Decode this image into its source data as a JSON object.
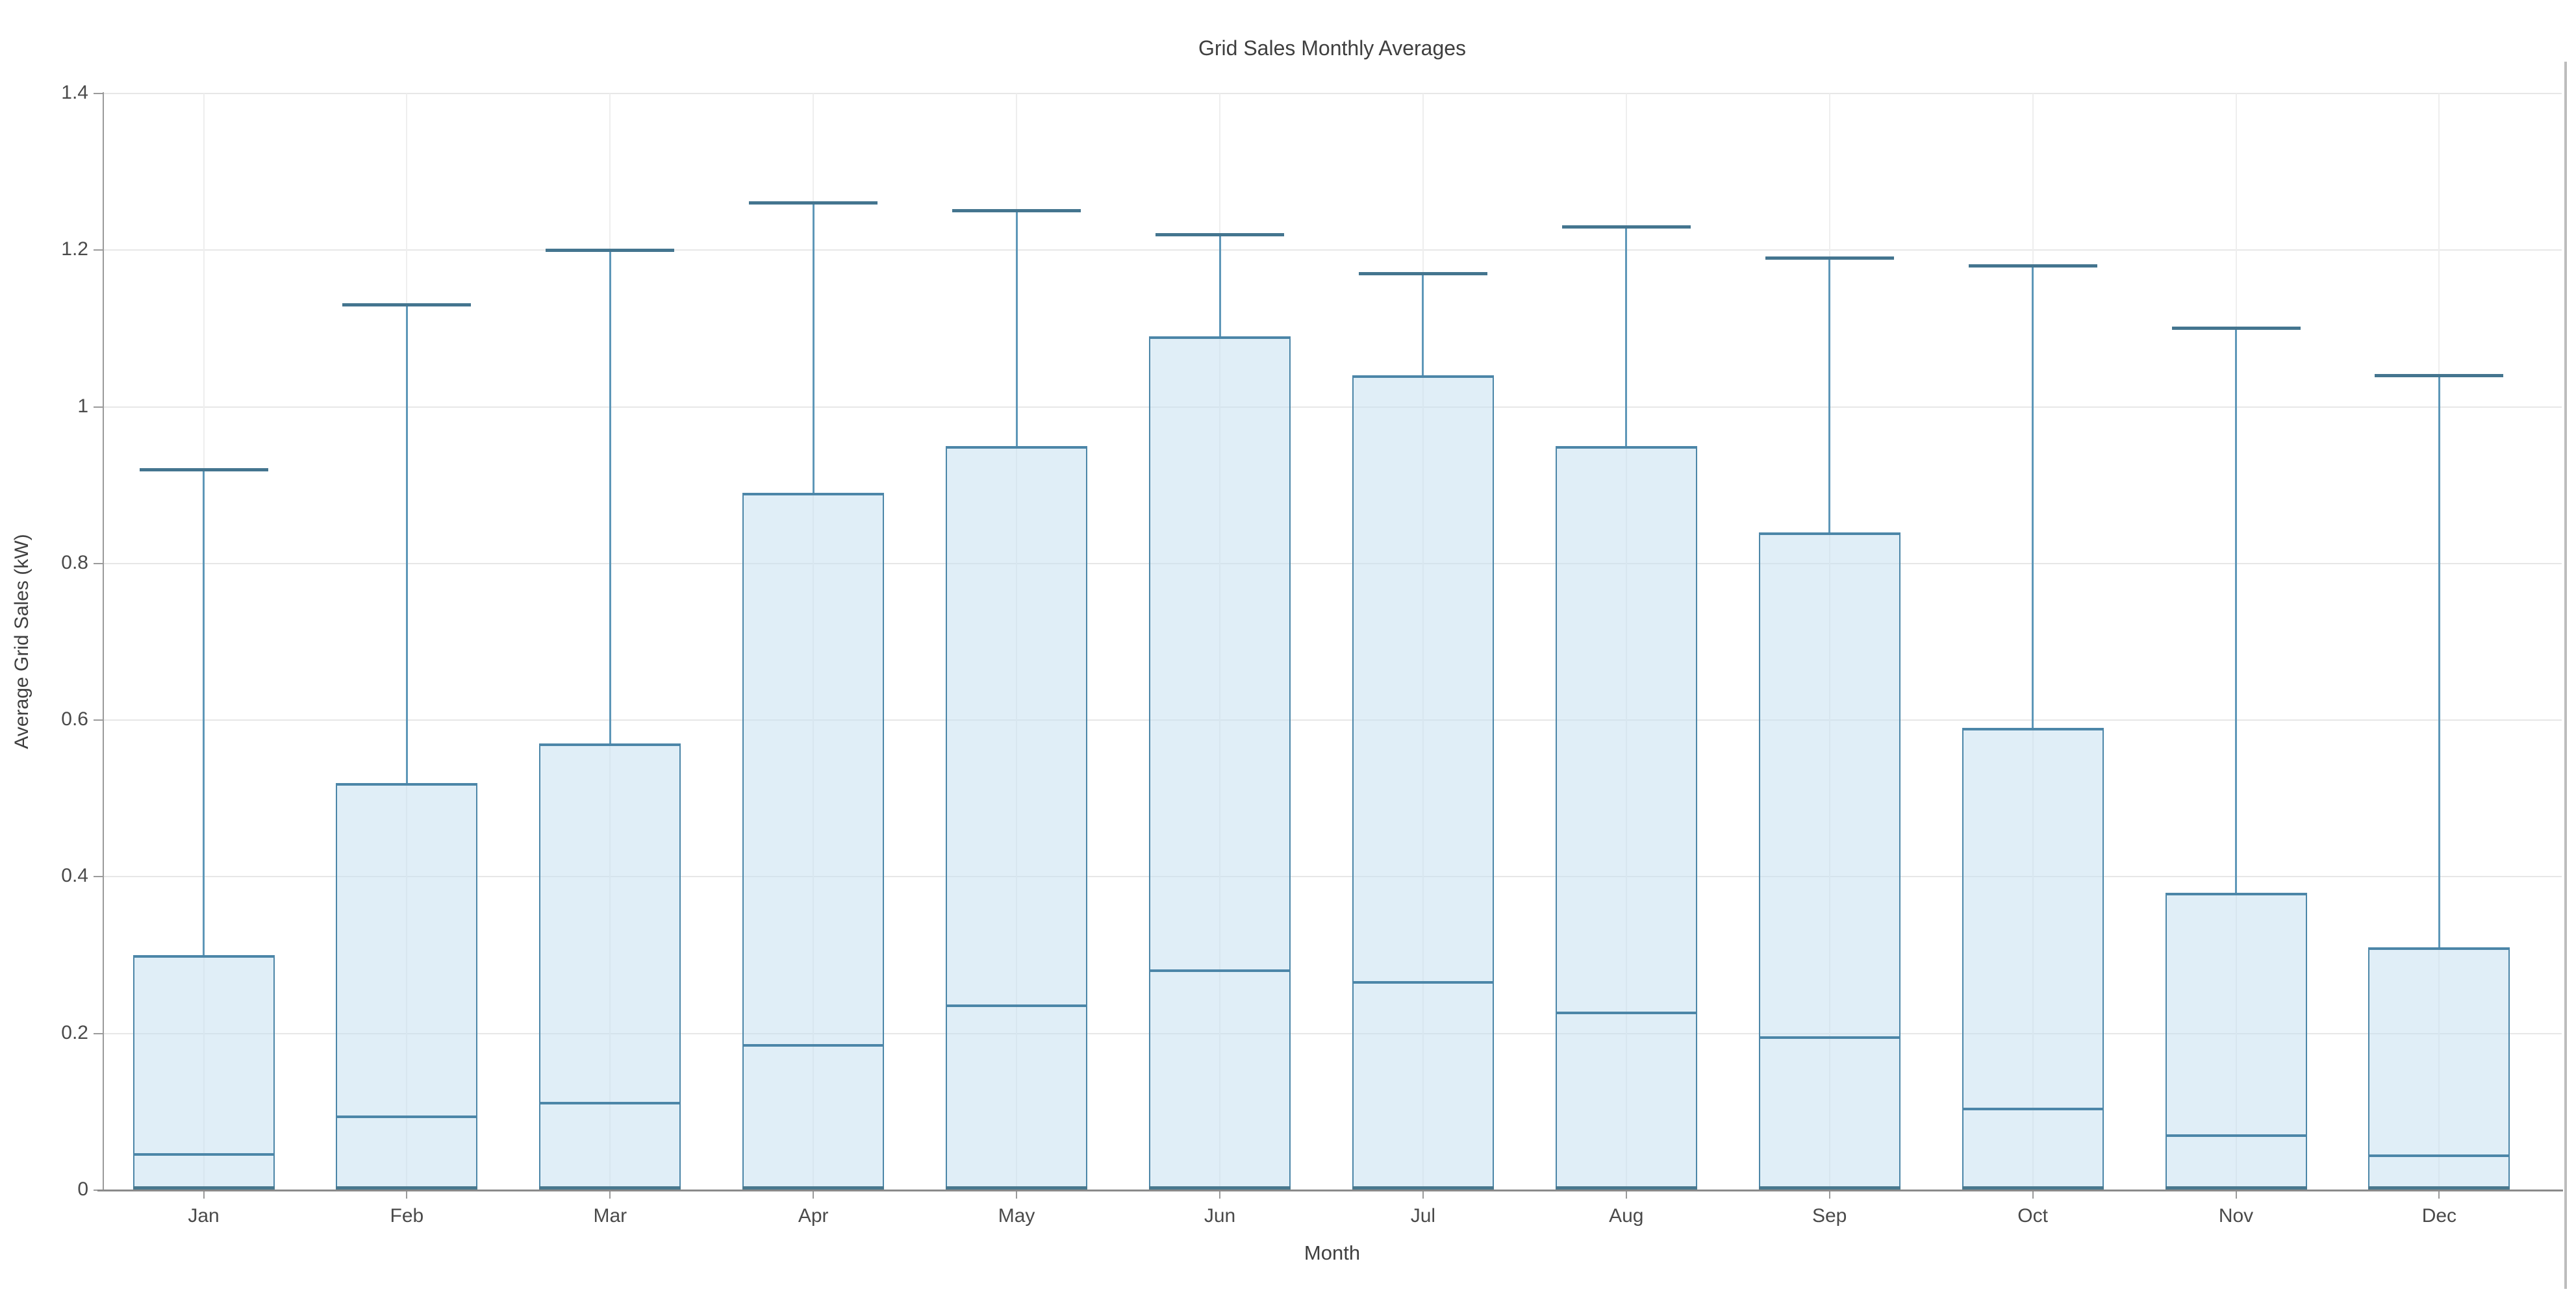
{
  "chart": {
    "title": "Grid Sales Monthly Averages",
    "xlabel": "Month",
    "ylabel": "Average Grid Sales (kW)"
  },
  "chart_data": {
    "type": "bar",
    "subtype": "column-with-median-and-upper-whisker",
    "title": "Grid Sales Monthly Averages",
    "xlabel": "Month",
    "ylabel": "Average Grid Sales (kW)",
    "categories": [
      "Jan",
      "Feb",
      "Mar",
      "Apr",
      "May",
      "Jun",
      "Jul",
      "Aug",
      "Sep",
      "Oct",
      "Nov",
      "Dec"
    ],
    "series": [
      {
        "name": "bar_top",
        "values": [
          0.3,
          0.52,
          0.57,
          0.89,
          0.95,
          1.09,
          1.04,
          0.95,
          0.84,
          0.59,
          0.38,
          0.31
        ]
      },
      {
        "name": "median",
        "values": [
          0.046,
          0.094,
          0.111,
          0.185,
          0.235,
          0.28,
          0.265,
          0.226,
          0.195,
          0.104,
          0.07,
          0.044
        ]
      },
      {
        "name": "whisker_high",
        "values": [
          0.92,
          1.13,
          1.2,
          1.26,
          1.25,
          1.22,
          1.17,
          1.23,
          1.19,
          1.18,
          1.1,
          1.04
        ]
      }
    ],
    "bar_base": 0,
    "ylim": [
      0,
      1.4
    ],
    "yticks": [
      {
        "value": 0,
        "label": "0"
      },
      {
        "value": 0.2,
        "label": "0.2"
      },
      {
        "value": 0.4,
        "label": "0.4"
      },
      {
        "value": 0.6,
        "label": "0.6"
      },
      {
        "value": 0.8,
        "label": "0.8"
      },
      {
        "value": 1,
        "label": "1"
      },
      {
        "value": 1.2,
        "label": "1.2"
      },
      {
        "value": 1.4,
        "label": "1.4"
      }
    ],
    "grid": true,
    "legend_position": "none",
    "colors": {
      "bar_fill": "rgba(199,224,241,0.55)",
      "bar_border": "#4c86a8",
      "median_line": "#4c86a8",
      "whisker_line": "#5e97b8",
      "cap_line": "#44758f",
      "h_gridline": "#e7e7e7",
      "v_gridline": "#eeeeee",
      "axis_line": "#8a8a8a",
      "text": "#424242"
    }
  }
}
